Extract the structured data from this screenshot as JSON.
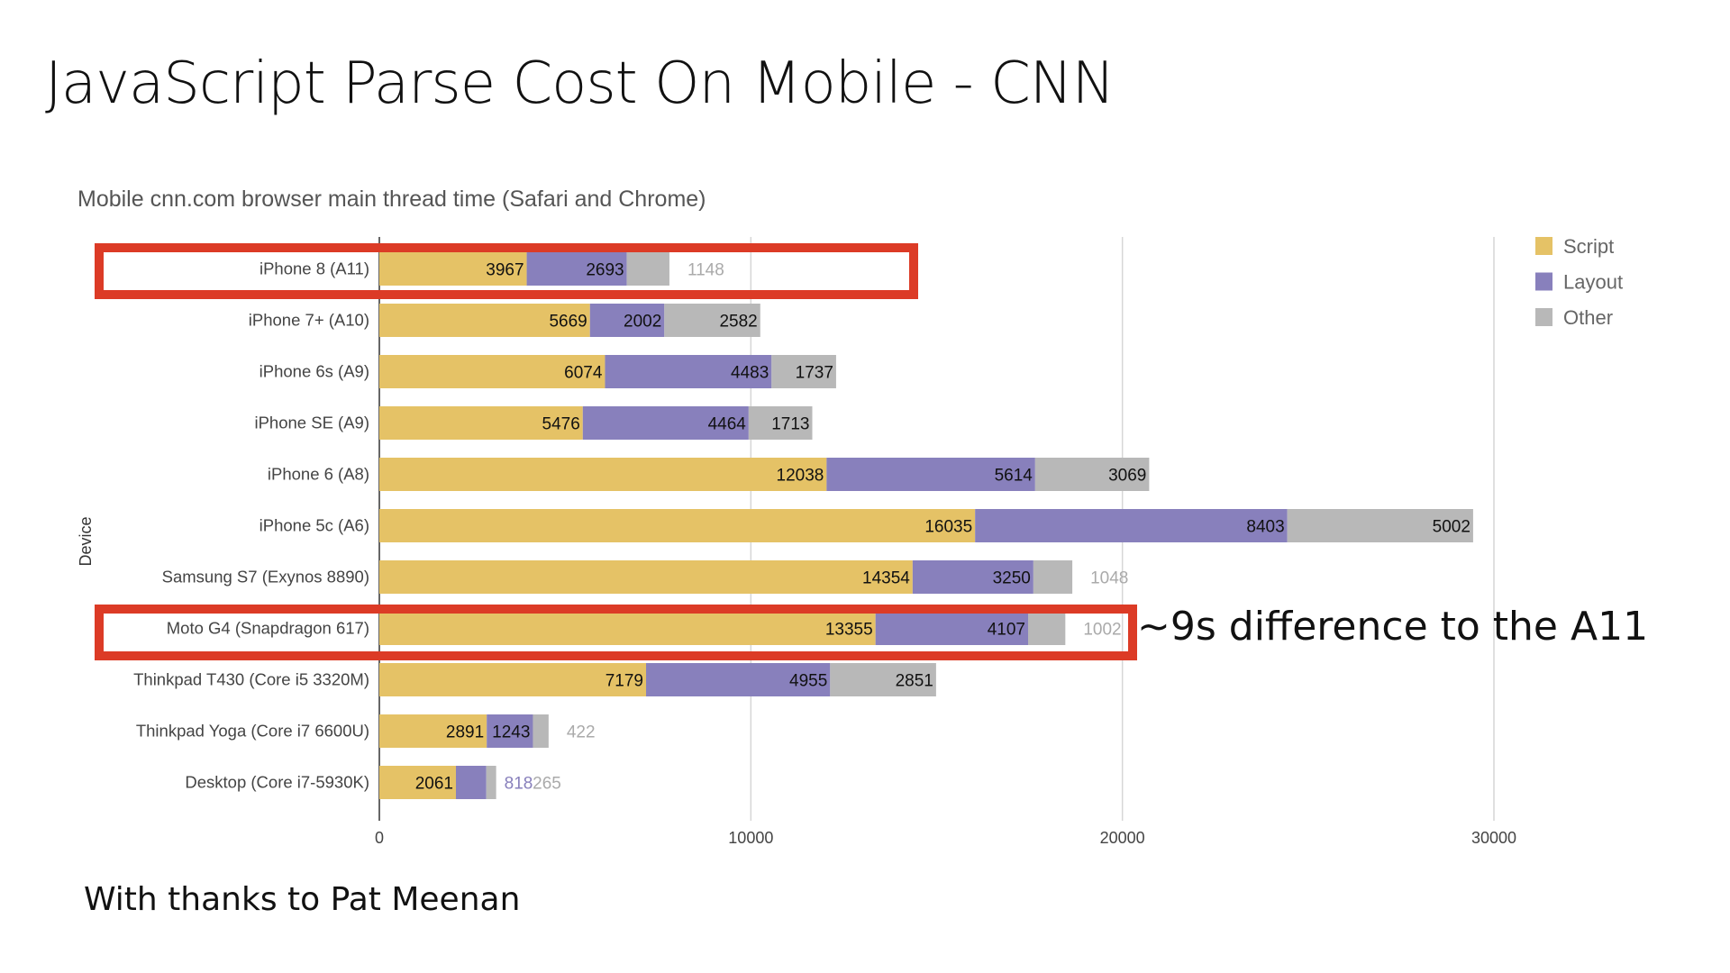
{
  "slide": {
    "title": "JavaScript Parse Cost On Mobile - CNN",
    "credit": "With thanks to Pat Meenan",
    "annotation": "~9s difference to the A11",
    "highlight_color": "#dc3b26",
    "highlighted_devices": [
      "iPhone 8 (A11)",
      "Moto G4 (Snapdragon 617)"
    ]
  },
  "chart_data": {
    "type": "bar",
    "orientation": "horizontal",
    "stacked": true,
    "title": "Mobile cnn.com browser main thread time (Safari and Chrome)",
    "ylabel": "Device",
    "xlabel": "",
    "xlim": [
      0,
      30000
    ],
    "xticks": [
      "0",
      "10000",
      "20000",
      "30000"
    ],
    "grid": true,
    "legend_position": "right",
    "categories": [
      "iPhone 8 (A11)",
      "iPhone 7+ (A10)",
      "iPhone 6s (A9)",
      "iPhone SE (A9)",
      "iPhone 6 (A8)",
      "iPhone 5c (A6)",
      "Samsung S7 (Exynos 8890)",
      "Moto G4 (Snapdragon 617)",
      "Thinkpad T430 (Core i5 3320M)",
      "Thinkpad Yoga (Core i7 6600U)",
      "Desktop (Core i7-5930K)"
    ],
    "series": [
      {
        "name": "Script",
        "color": "#e5c266",
        "values": [
          3967,
          5669,
          6074,
          5476,
          12038,
          16035,
          14354,
          13355,
          7179,
          2891,
          2061
        ]
      },
      {
        "name": "Layout",
        "color": "#8880bc",
        "values": [
          2693,
          2002,
          4483,
          4464,
          5614,
          8403,
          3250,
          4107,
          4955,
          1243,
          818
        ]
      },
      {
        "name": "Other",
        "color": "#b8b8b8",
        "values": [
          1148,
          2582,
          1737,
          1713,
          3069,
          5002,
          1048,
          1002,
          2851,
          422,
          265
        ]
      }
    ]
  }
}
